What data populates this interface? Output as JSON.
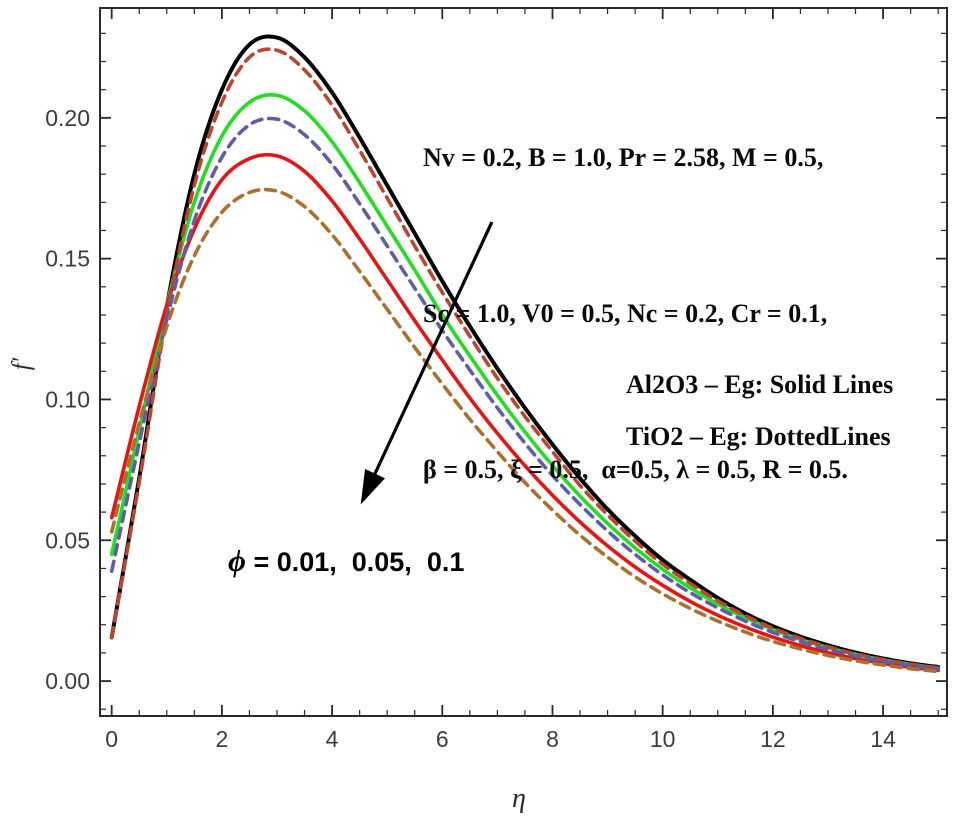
{
  "figure": {
    "background": "#ffffff",
    "frame_color": "#2a2a2a",
    "tick_color": "#2a2a2a",
    "tick_label_color": "#3d3d3d",
    "arrow_color": "#000000"
  },
  "chart_data": {
    "type": "line",
    "title": "",
    "xlabel": "η",
    "ylabel": "f′",
    "grid": false,
    "legend_position": "annotations inside plot",
    "xlim": [
      -0.212,
      15.16
    ],
    "ylim": [
      -0.0124,
      0.239
    ],
    "xticks": {
      "major": [
        0,
        2,
        4,
        6,
        8,
        10,
        12,
        14
      ],
      "labels": [
        "0",
        "2",
        "4",
        "6",
        "8",
        "10",
        "12",
        "14"
      ],
      "minor_step": 0.5
    },
    "yticks": {
      "major": [
        0,
        0.05,
        0.1,
        0.15,
        0.2
      ],
      "labels": [
        "0.00",
        "0.05",
        "0.10",
        "0.15",
        "0.20"
      ],
      "minor_step": 0.01
    },
    "x": [
      0,
      0.5,
      1,
      1.5,
      2,
      2.5,
      3,
      3.5,
      4,
      4.5,
      5,
      5.5,
      6,
      6.5,
      7,
      7.5,
      8,
      8.5,
      9,
      9.5,
      10,
      10.5,
      11,
      11.5,
      12,
      12.5,
      13,
      13.5,
      14,
      14.5,
      15
    ],
    "series": [
      {
        "id": "al2o3-phi-0.01",
        "name": "Al2O3 φ=0.01",
        "material": "Al2O3",
        "phi": 0.01,
        "style": "solid",
        "color": "#000000",
        "width": 4,
        "dash": "",
        "values": [
          0.0155,
          0.072,
          0.133,
          0.18,
          0.21,
          0.226,
          0.2285,
          0.2215,
          0.209,
          0.193,
          0.176,
          0.159,
          0.142,
          0.126,
          0.111,
          0.097,
          0.084,
          0.072,
          0.061,
          0.0515,
          0.043,
          0.036,
          0.0295,
          0.024,
          0.0195,
          0.0158,
          0.0127,
          0.0101,
          0.008,
          0.0063,
          0.005
        ]
      },
      {
        "id": "al2o3-phi-0.05",
        "name": "Al2O3 φ=0.05",
        "material": "Al2O3",
        "phi": 0.05,
        "style": "solid",
        "color": "#22dd22",
        "width": 3.6,
        "dash": "",
        "values": [
          0.045,
          0.089,
          0.1335,
          0.17,
          0.1935,
          0.2055,
          0.208,
          0.2025,
          0.1915,
          0.177,
          0.1615,
          0.146,
          0.13,
          0.1155,
          0.1015,
          0.0885,
          0.0765,
          0.0657,
          0.056,
          0.0473,
          0.0397,
          0.0331,
          0.0274,
          0.0225,
          0.0183,
          0.0148,
          0.0119,
          0.0095,
          0.0075,
          0.0059,
          0.0046
        ]
      },
      {
        "id": "al2o3-phi-0.1",
        "name": "Al2O3 φ=0.1",
        "material": "Al2O3",
        "phi": 0.1,
        "style": "solid",
        "color": "#e81414",
        "width": 3.6,
        "dash": "",
        "values": [
          0.058,
          0.0975,
          0.1335,
          0.1605,
          0.178,
          0.1855,
          0.1865,
          0.181,
          0.1705,
          0.157,
          0.1425,
          0.128,
          0.114,
          0.1005,
          0.088,
          0.0765,
          0.066,
          0.0565,
          0.048,
          0.0405,
          0.034,
          0.0283,
          0.0234,
          0.0192,
          0.0156,
          0.0126,
          0.0101,
          0.008,
          0.0063,
          0.0049,
          0.0038
        ]
      },
      {
        "id": "tio2-phi-0.01",
        "name": "TiO2 φ=0.01",
        "material": "TiO2",
        "phi": 0.01,
        "style": "dashed",
        "color": "#bb4530",
        "width": 3.6,
        "dash": "10 7",
        "values": [
          0.0155,
          0.0705,
          0.13,
          0.176,
          0.2055,
          0.2215,
          0.224,
          0.217,
          0.2045,
          0.1885,
          0.1715,
          0.1545,
          0.138,
          0.1225,
          0.1075,
          0.094,
          0.0815,
          0.0695,
          0.059,
          0.0497,
          0.0415,
          0.0347,
          0.0285,
          0.0232,
          0.0188,
          0.0152,
          0.0122,
          0.0097,
          0.0077,
          0.006,
          0.0047
        ]
      },
      {
        "id": "tio2-phi-0.05",
        "name": "TiO2 φ=0.05",
        "material": "TiO2",
        "phi": 0.05,
        "style": "dashed",
        "color": "#5d5daa",
        "width": 3.6,
        "dash": "10 7",
        "values": [
          0.039,
          0.0845,
          0.1285,
          0.1635,
          0.186,
          0.1975,
          0.1995,
          0.194,
          0.1835,
          0.1695,
          0.1545,
          0.1395,
          0.1245,
          0.1105,
          0.097,
          0.0845,
          0.073,
          0.0627,
          0.0533,
          0.045,
          0.0377,
          0.0314,
          0.026,
          0.0213,
          0.0173,
          0.014,
          0.0112,
          0.0089,
          0.007,
          0.0055,
          0.0043
        ]
      },
      {
        "id": "tio2-phi-0.1",
        "name": "TiO2 φ=0.1",
        "material": "TiO2",
        "phi": 0.1,
        "style": "dashed",
        "color": "#ab702c",
        "width": 3.6,
        "dash": "10 7",
        "values": [
          0.053,
          0.0915,
          0.126,
          0.151,
          0.1665,
          0.1735,
          0.174,
          0.1685,
          0.1585,
          0.1455,
          0.132,
          0.1185,
          0.1055,
          0.093,
          0.0815,
          0.0705,
          0.0607,
          0.0518,
          0.044,
          0.037,
          0.031,
          0.0258,
          0.0213,
          0.0174,
          0.0141,
          0.0114,
          0.0091,
          0.0072,
          0.0057,
          0.0044,
          0.0034
        ]
      }
    ]
  },
  "annotations": {
    "params_line1": "Nv = 0.2, B = 1.0, Pr = 2.58, M = 0.5,",
    "params_line2": "Sc = 1.0, V0 = 0.5, Nc = 0.2, Cr = 0.1,",
    "params_line3": "β = 0.5, ξ = 0.5,  α=0.5, λ = 0.5, R = 0.5.",
    "legend_solid": "Al2O3 – Eg: Solid Lines",
    "legend_dotted": "TiO2 – Eg: DottedLines",
    "phi_symbol": "ϕ",
    "phi_text": " = 0.01,  0.05,  0.1",
    "arrow": {
      "from_x": 6.9,
      "from_y": 0.163,
      "to_x": 4.55,
      "to_y": 0.064
    }
  },
  "axis_labels": {
    "x": "η",
    "y": "f′"
  }
}
